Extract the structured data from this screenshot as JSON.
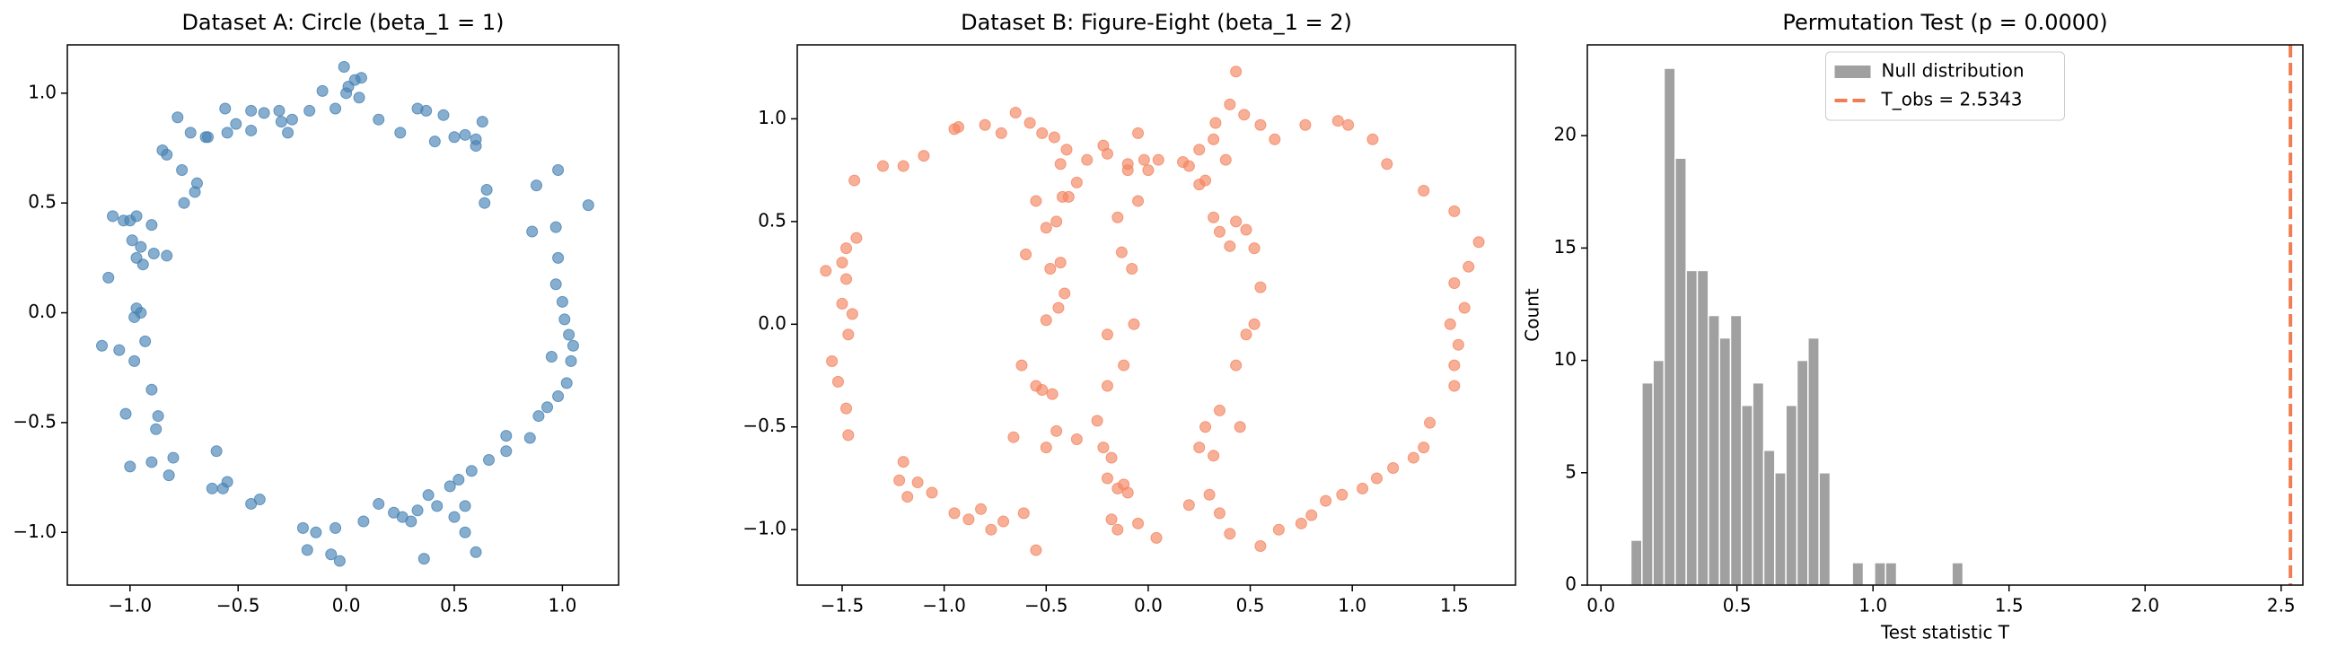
{
  "chart_data": [
    {
      "type": "scatter",
      "title": "Dataset A: Circle (beta_1 = 1)",
      "color": "#4682b4",
      "x": [
        -0.01,
        0.04,
        0.07,
        0.01,
        -0.05,
        -0.11,
        -0.17,
        -0.25,
        -0.31,
        -0.38,
        -0.44,
        -0.51,
        -0.56,
        -0.65,
        -0.72,
        -0.78,
        -0.83,
        -0.85,
        -0.76,
        -0.69,
        -0.7,
        -0.64,
        -0.44,
        -0.27,
        0.06,
        0.15,
        0.25,
        0.33,
        0.37,
        0.45,
        0.5,
        0.55,
        0.6,
        0.63,
        0.41,
        0.6,
        0.65,
        0.64,
        0.86,
        0.88,
        0.98,
        0.97,
        1.12,
        0.98,
        0.97,
        1.0,
        1.01,
        1.03,
        1.05,
        1.04,
        0.95,
        1.02,
        0.98,
        0.93,
        0.89,
        0.85,
        0.74,
        0.74,
        0.66,
        0.58,
        0.52,
        0.48,
        0.38,
        0.42,
        0.55,
        0.5,
        0.33,
        0.3,
        0.22,
        0.26,
        0.55,
        0.6,
        0.36,
        0.15,
        0.08,
        -0.05,
        -0.03,
        -0.14,
        -0.2,
        -0.18,
        -0.07,
        -0.4,
        -0.44,
        -0.6,
        -0.55,
        -0.57,
        -0.62,
        -0.8,
        -0.82,
        -0.9,
        -1.0,
        -0.88,
        -0.87,
        -0.9,
        -1.02,
        -0.93,
        -0.98,
        -1.13,
        -1.05,
        -0.98,
        -0.95,
        -0.97,
        -1.1,
        -0.94,
        -0.97,
        -0.89,
        -0.83,
        -0.95,
        -0.99,
        -1.03,
        -1.0,
        -0.97,
        -1.08,
        -0.9,
        -0.75,
        -0.55,
        -0.3,
        0.0
      ],
      "y": [
        1.12,
        1.06,
        1.07,
        1.03,
        0.93,
        1.01,
        0.92,
        0.88,
        0.92,
        0.91,
        0.83,
        0.86,
        0.93,
        0.8,
        0.82,
        0.89,
        0.72,
        0.74,
        0.65,
        0.59,
        0.55,
        0.8,
        0.92,
        0.82,
        0.98,
        0.88,
        0.82,
        0.93,
        0.92,
        0.9,
        0.8,
        0.81,
        0.79,
        0.87,
        0.78,
        0.76,
        0.56,
        0.5,
        0.37,
        0.58,
        0.65,
        0.39,
        0.49,
        0.25,
        0.13,
        0.05,
        -0.03,
        -0.1,
        -0.15,
        -0.22,
        -0.2,
        -0.32,
        -0.38,
        -0.43,
        -0.47,
        -0.57,
        -0.56,
        -0.63,
        -0.67,
        -0.72,
        -0.76,
        -0.79,
        -0.83,
        -0.88,
        -0.88,
        -0.93,
        -0.9,
        -0.95,
        -0.91,
        -0.93,
        -1.0,
        -1.09,
        -1.12,
        -0.87,
        -0.95,
        -0.98,
        -1.13,
        -1.0,
        -0.98,
        -1.08,
        -1.1,
        -0.85,
        -0.87,
        -0.63,
        -0.77,
        -0.8,
        -0.8,
        -0.66,
        -0.74,
        -0.68,
        -0.7,
        -0.53,
        -0.47,
        -0.35,
        -0.46,
        -0.13,
        -0.22,
        -0.15,
        -0.17,
        -0.02,
        0.0,
        0.02,
        0.16,
        0.22,
        0.25,
        0.27,
        0.26,
        0.3,
        0.33,
        0.42,
        0.42,
        0.44,
        0.44,
        0.4,
        0.5,
        0.82,
        0.87,
        1.0
      ],
      "xlim": [
        -1.29,
        1.26
      ],
      "ylim": [
        -1.24,
        1.22
      ],
      "xticks": [
        {
          "value": -1.0,
          "label": "−1.0"
        },
        {
          "value": -0.5,
          "label": "−0.5"
        },
        {
          "value": 0.0,
          "label": "0.0"
        },
        0.5,
        {
          "value": 1.0,
          "label": "1.0"
        }
      ],
      "yticks": [
        {
          "value": -1.0,
          "label": "−1.0"
        },
        {
          "value": -0.5,
          "label": "−0.5"
        },
        {
          "value": 0.0,
          "label": "0.0"
        },
        0.5,
        {
          "value": 1.0,
          "label": "1.0"
        }
      ]
    },
    {
      "type": "scatter",
      "title": "Dataset B: Figure-Eight (beta_1 = 2)",
      "color": "#f4845f",
      "x": [
        -1.58,
        -1.5,
        -1.48,
        -1.43,
        -1.48,
        -1.45,
        -1.47,
        -1.5,
        -1.55,
        -1.52,
        -1.48,
        -1.47,
        -1.44,
        -1.3,
        -1.2,
        -1.1,
        -0.95,
        -0.93,
        -0.8,
        -0.72,
        -0.65,
        -0.58,
        -0.52,
        -0.46,
        -0.4,
        -0.43,
        -0.35,
        -0.39,
        -0.42,
        -0.5,
        -0.45,
        -0.6,
        -0.48,
        -0.43,
        -0.41,
        -0.44,
        -0.5,
        -0.55,
        -0.52,
        -0.47,
        -0.45,
        -0.5,
        -0.35,
        -0.22,
        -0.18,
        -0.2,
        -0.15,
        -0.1,
        -0.12,
        -0.18,
        -0.15,
        -0.05,
        0.04,
        -0.25,
        -0.2,
        -0.12,
        -0.2,
        -0.07,
        -0.08,
        -0.13,
        -0.15,
        -0.05,
        -0.1,
        -0.2,
        -0.02,
        -0.05,
        -0.22,
        -0.3,
        -0.55,
        -1.2,
        -1.22,
        -1.18,
        -1.13,
        -1.06,
        -0.95,
        -0.88,
        -0.82,
        -0.77,
        -0.71,
        -0.61,
        -0.55,
        -0.62,
        -0.66,
        0.05,
        0.17,
        0.2,
        0.25,
        0.28,
        0.32,
        0.35,
        0.4,
        0.43,
        0.48,
        0.52,
        0.55,
        0.52,
        0.48,
        0.43,
        0.35,
        0.28,
        0.25,
        0.32,
        0.45,
        0.3,
        0.2,
        0.35,
        0.4,
        0.55,
        0.64,
        0.75,
        0.8,
        0.87,
        0.95,
        1.05,
        1.12,
        1.2,
        1.3,
        1.35,
        1.38,
        1.5,
        1.5,
        1.52,
        1.48,
        1.55,
        1.5,
        1.57,
        1.62,
        1.5,
        1.35,
        1.17,
        1.1,
        0.98,
        0.93,
        0.77,
        0.62,
        0.55,
        0.47,
        0.4,
        0.43,
        0.33,
        0.32,
        0.38,
        0.25,
        0.0,
        -0.1
      ],
      "y": [
        0.26,
        0.3,
        0.37,
        0.42,
        0.22,
        0.05,
        -0.05,
        0.1,
        -0.18,
        -0.28,
        -0.41,
        -0.54,
        0.7,
        0.77,
        0.77,
        0.82,
        0.95,
        0.96,
        0.97,
        0.93,
        1.03,
        0.98,
        0.93,
        0.91,
        0.85,
        0.78,
        0.69,
        0.62,
        0.62,
        0.47,
        0.5,
        0.34,
        0.27,
        0.3,
        0.15,
        0.08,
        0.02,
        -0.3,
        -0.32,
        -0.34,
        -0.52,
        -0.6,
        -0.56,
        -0.6,
        -0.65,
        -0.75,
        -0.8,
        -0.82,
        -0.78,
        -0.95,
        -1.0,
        -0.97,
        -1.04,
        -0.47,
        -0.3,
        -0.2,
        -0.05,
        0.0,
        0.27,
        0.35,
        0.52,
        0.6,
        0.75,
        0.83,
        0.8,
        0.93,
        0.87,
        0.8,
        0.6,
        -0.67,
        -0.76,
        -0.84,
        -0.77,
        -0.82,
        -0.92,
        -0.95,
        -0.9,
        -1.0,
        -0.96,
        -0.92,
        -1.1,
        -0.2,
        -0.55,
        0.8,
        0.79,
        0.77,
        0.68,
        0.7,
        0.52,
        0.45,
        0.38,
        0.5,
        0.46,
        0.37,
        0.18,
        0.0,
        -0.05,
        -0.2,
        -0.42,
        -0.5,
        -0.6,
        -0.64,
        -0.5,
        -0.83,
        -0.88,
        -0.92,
        -1.02,
        -1.08,
        -1.0,
        -0.97,
        -0.93,
        -0.86,
        -0.83,
        -0.8,
        -0.75,
        -0.7,
        -0.65,
        -0.6,
        -0.48,
        -0.3,
        -0.2,
        -0.1,
        0.0,
        0.08,
        0.2,
        0.28,
        0.4,
        0.55,
        0.65,
        0.78,
        0.9,
        0.97,
        0.99,
        0.97,
        0.9,
        0.97,
        1.02,
        1.07,
        1.23,
        0.98,
        0.9,
        0.8,
        0.85,
        0.75,
        0.78
      ],
      "xlim": [
        -1.72,
        1.8
      ],
      "ylim": [
        -1.27,
        1.36
      ],
      "xticks": [
        {
          "value": -1.5,
          "label": "−1.5"
        },
        {
          "value": -1.0,
          "label": "−1.0"
        },
        {
          "value": -0.5,
          "label": "−0.5"
        },
        {
          "value": 0.0,
          "label": "0.0"
        },
        0.5,
        {
          "value": 1.0,
          "label": "1.0"
        },
        1.5
      ],
      "yticks": [
        {
          "value": -1.0,
          "label": "−1.0"
        },
        {
          "value": -0.5,
          "label": "−0.5"
        },
        {
          "value": 0.0,
          "label": "0.0"
        },
        0.5,
        {
          "value": 1.0,
          "label": "1.0"
        }
      ]
    },
    {
      "type": "histogram",
      "title": "Permutation Test (p = 0.0000)",
      "xlabel": "Test statistic T",
      "ylabel": "Count",
      "bins": [
        0.11,
        0.1507,
        0.1914,
        0.2321,
        0.2728,
        0.3135,
        0.3542,
        0.3949,
        0.4356,
        0.4763,
        0.517,
        0.5577,
        0.5984,
        0.6391,
        0.6798,
        0.7205,
        0.7612,
        0.8019,
        0.8426,
        0.8833,
        0.924,
        0.9647,
        1.0054,
        1.0461,
        1.0868,
        1.1275,
        1.1682,
        1.2089,
        1.2496,
        1.2903,
        1.331
      ],
      "series": [
        {
          "name": "Null distribution",
          "color": "#a0a0a0",
          "values": [
            2,
            9,
            10,
            23,
            19,
            14,
            14,
            12,
            11,
            12,
            8,
            9,
            6,
            5,
            8,
            10,
            11,
            5,
            0,
            0,
            1,
            0,
            1,
            1,
            0,
            0,
            0,
            0,
            0,
            1
          ]
        }
      ],
      "vline": {
        "name": "T_obs = 2.5343",
        "value": 2.5343,
        "color": "#f07e52"
      },
      "legend": "upper center",
      "xlim": [
        -0.05,
        2.58
      ],
      "ylim": [
        0,
        24.04
      ],
      "xticks": [
        {
          "value": 0.0,
          "label": "0.0"
        },
        0.5,
        {
          "value": 1.0,
          "label": "1.0"
        },
        1.5,
        {
          "value": 2.0,
          "label": "2.0"
        },
        2.5
      ],
      "yticks": [
        0,
        5,
        10,
        15,
        20
      ]
    }
  ]
}
